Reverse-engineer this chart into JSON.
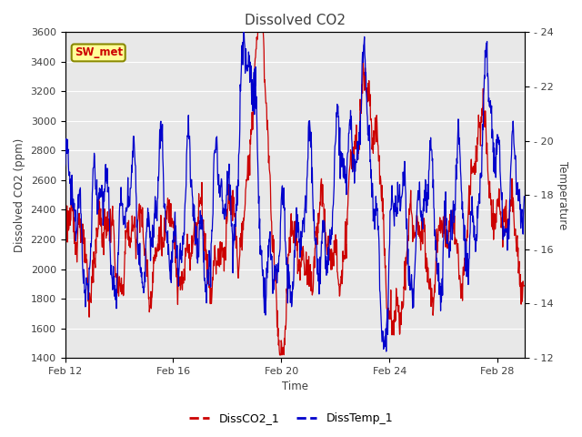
{
  "title": "Dissolved CO2",
  "xlabel": "Time",
  "ylabel_left": "Dissolved CO2 (ppm)",
  "ylabel_right": "Temperature",
  "ylim_left": [
    1400,
    3600
  ],
  "ylim_right": [
    12,
    24
  ],
  "yticks_left": [
    1400,
    1600,
    1800,
    2000,
    2200,
    2400,
    2600,
    2800,
    3000,
    3200,
    3400,
    3600
  ],
  "yticks_right": [
    12,
    14,
    16,
    18,
    20,
    22,
    24
  ],
  "xtick_labels": [
    "Feb 12",
    "Feb 16",
    "Feb 20",
    "Feb 24",
    "Feb 28"
  ],
  "xtick_positions": [
    0,
    4,
    8,
    12,
    16
  ],
  "color_co2": "#cc0000",
  "color_temp": "#0000cc",
  "legend_label_co2": "DissCO2_1",
  "legend_label_temp": "DissTemp_1",
  "label_box_text": "SW_met",
  "label_box_facecolor": "#ffff99",
  "label_box_edgecolor": "#888800",
  "label_box_textcolor": "#cc0000",
  "fig_bg_color": "#ffffff",
  "plot_bg_color": "#e8e8e8",
  "grid_color": "#ffffff",
  "title_color": "#404040",
  "axis_label_color": "#404040",
  "tick_label_color": "#404040"
}
